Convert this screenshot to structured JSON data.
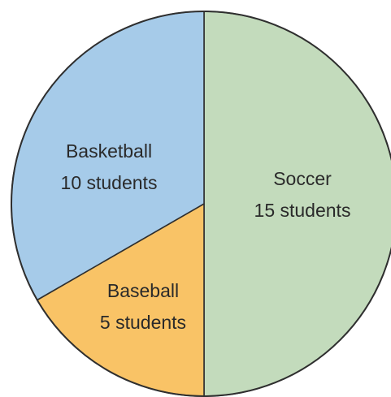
{
  "chart_data": {
    "type": "pie",
    "title": "",
    "unit": "students",
    "slices": [
      {
        "name": "Soccer",
        "value": 15,
        "value_label": "15 students",
        "color": "#c3dbbc"
      },
      {
        "name": "Baseball",
        "value": 5,
        "value_label": "5 students",
        "color": "#f9c366"
      },
      {
        "name": "Basketball",
        "value": 10,
        "value_label": "10 students",
        "color": "#a6cbe9"
      }
    ],
    "start": "12 o'clock",
    "direction": "clockwise",
    "legend": "none"
  }
}
